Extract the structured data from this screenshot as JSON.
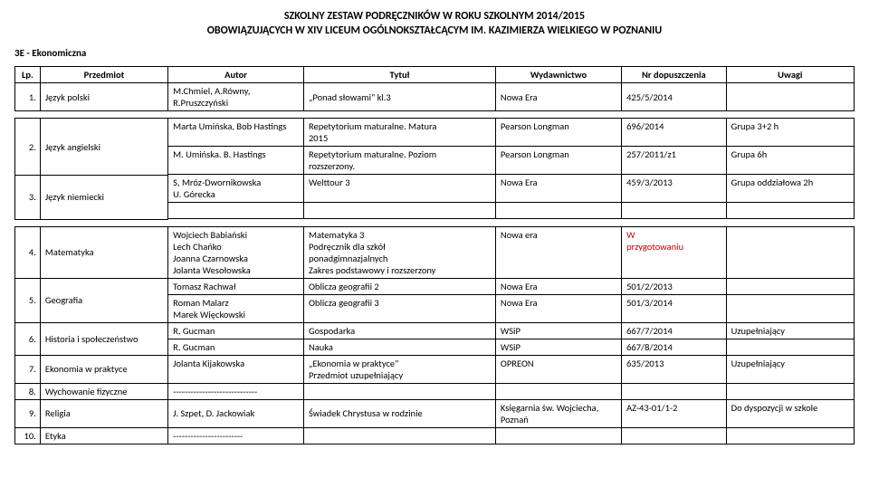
{
  "header": {
    "line1": "SZKOLNY ZESTAW PODRĘCZNIKÓW W ROKU SZKOLNYM 2014/2015",
    "line2": "OBOWIĄZUJĄCYCH W XIV LICEUM OGÓLNOKSZTAŁCĄCYM IM. KAZIMIERZA WIELKIEGO W POZNANIU"
  },
  "class_label": "3E - Ekonomiczna",
  "columns": {
    "lp": "Lp.",
    "subject": "Przedmiot",
    "author": "Autor",
    "title": "Tytuł",
    "publisher": "Wydawnictwo",
    "approval": "Nr dopuszczenia",
    "remarks": "Uwagi"
  },
  "row1": {
    "lp": "1.",
    "subject": "Język polski",
    "author_line1": "M.Chmiel, A.Równy,",
    "author_line2": "R.Pruszczyński",
    "title": "„Ponad słowami\" kl.3",
    "publisher": "Nowa Era",
    "approval": "425/5/2014"
  },
  "row2a": {
    "lp": "2.",
    "subject": "Język angielski",
    "author": "Marta Umińska, Bob Hastings",
    "title_line1": "Repetytorium maturalne. Matura",
    "title_line2": "2015",
    "publisher": "Pearson Longman",
    "approval": "696/2014",
    "remarks": "Grupa 3+2 h"
  },
  "row2b": {
    "author": "M. Umińska. B. Hastings",
    "title_line1": "Repetytorium maturalne. Poziom",
    "title_line2": "rozszerzony.",
    "publisher": "Pearson Longman",
    "approval": "257/2011/z1",
    "remarks": "Grupa 6h"
  },
  "row3": {
    "lp": "3.",
    "subject": "Język niemiecki",
    "author_line1": "S, Mróz-Dwornikowska",
    "author_line2": "U. Górecka",
    "title": "Welttour 3",
    "publisher": "Nowa Era",
    "approval": "459/3/2013",
    "remarks": "Grupa oddziałowa 2h"
  },
  "row4": {
    "lp": "4.",
    "subject": "Matematyka",
    "author_l1": "Wojciech Babiański",
    "author_l2": "Lech Chańko",
    "author_l3": "Joanna Czarnowska",
    "author_l4": "Jolanta Wesołowska",
    "title_l1": "Matematyka 3",
    "title_l2": "Podręcznik dla szkół",
    "title_l3": "ponadgimnazjalnych",
    "title_l4": "Zakres podstawowy i rozszerzony",
    "publisher": "Nowa era",
    "approval_l1": "W",
    "approval_l2": "przygotowaniu"
  },
  "row5a": {
    "lp": "5.",
    "subject": "Geografia",
    "author": "Tomasz Rachwał",
    "title": "Oblicza geografii 2",
    "publisher": "Nowa Era",
    "approval": "501/2/2013"
  },
  "row5b": {
    "author_l1": "Roman Malarz",
    "author_l2": "Marek Więckowski",
    "title": "Oblicza geografii 3",
    "publisher": "Nowa Era",
    "approval": "501/3/2014"
  },
  "row6a": {
    "lp": "6.",
    "subject": "Historia i społeczeństwo",
    "author": "R. Gucman",
    "title": "Gospodarka",
    "publisher": "WSiP",
    "approval": "667/7/2014",
    "remarks": "Uzupełniający"
  },
  "row6b": {
    "author": "R. Gucman",
    "title": "Nauka",
    "publisher": "WSiP",
    "approval": "667/8/2014"
  },
  "row7": {
    "lp": "7.",
    "subject": "Ekonomia w praktyce",
    "author": "Jolanta Kijakowska",
    "title_l1": "„Ekonomia w praktyce\"",
    "title_l2": "Przedmiot uzupełniający",
    "publisher": "OPREON",
    "approval": "635/2013",
    "remarks": "Uzupełniający"
  },
  "row8": {
    "lp": "8.",
    "subject": "Wychowanie fizyczne",
    "author": "-----------------------------"
  },
  "row9": {
    "lp": "9.",
    "subject": "Religia",
    "author": "J. Szpet, D. Jackowiak",
    "title": "Świadek Chrystusa w rodzinie",
    "publisher_l1": "Księgarnia św. Wojciecha,",
    "publisher_l2": "Poznań",
    "approval": "AZ-43-01/1-2",
    "remarks": "Do dyspozycji w szkole"
  },
  "row10": {
    "lp": "10.",
    "subject": "Etyka",
    "author": "------------------------"
  }
}
